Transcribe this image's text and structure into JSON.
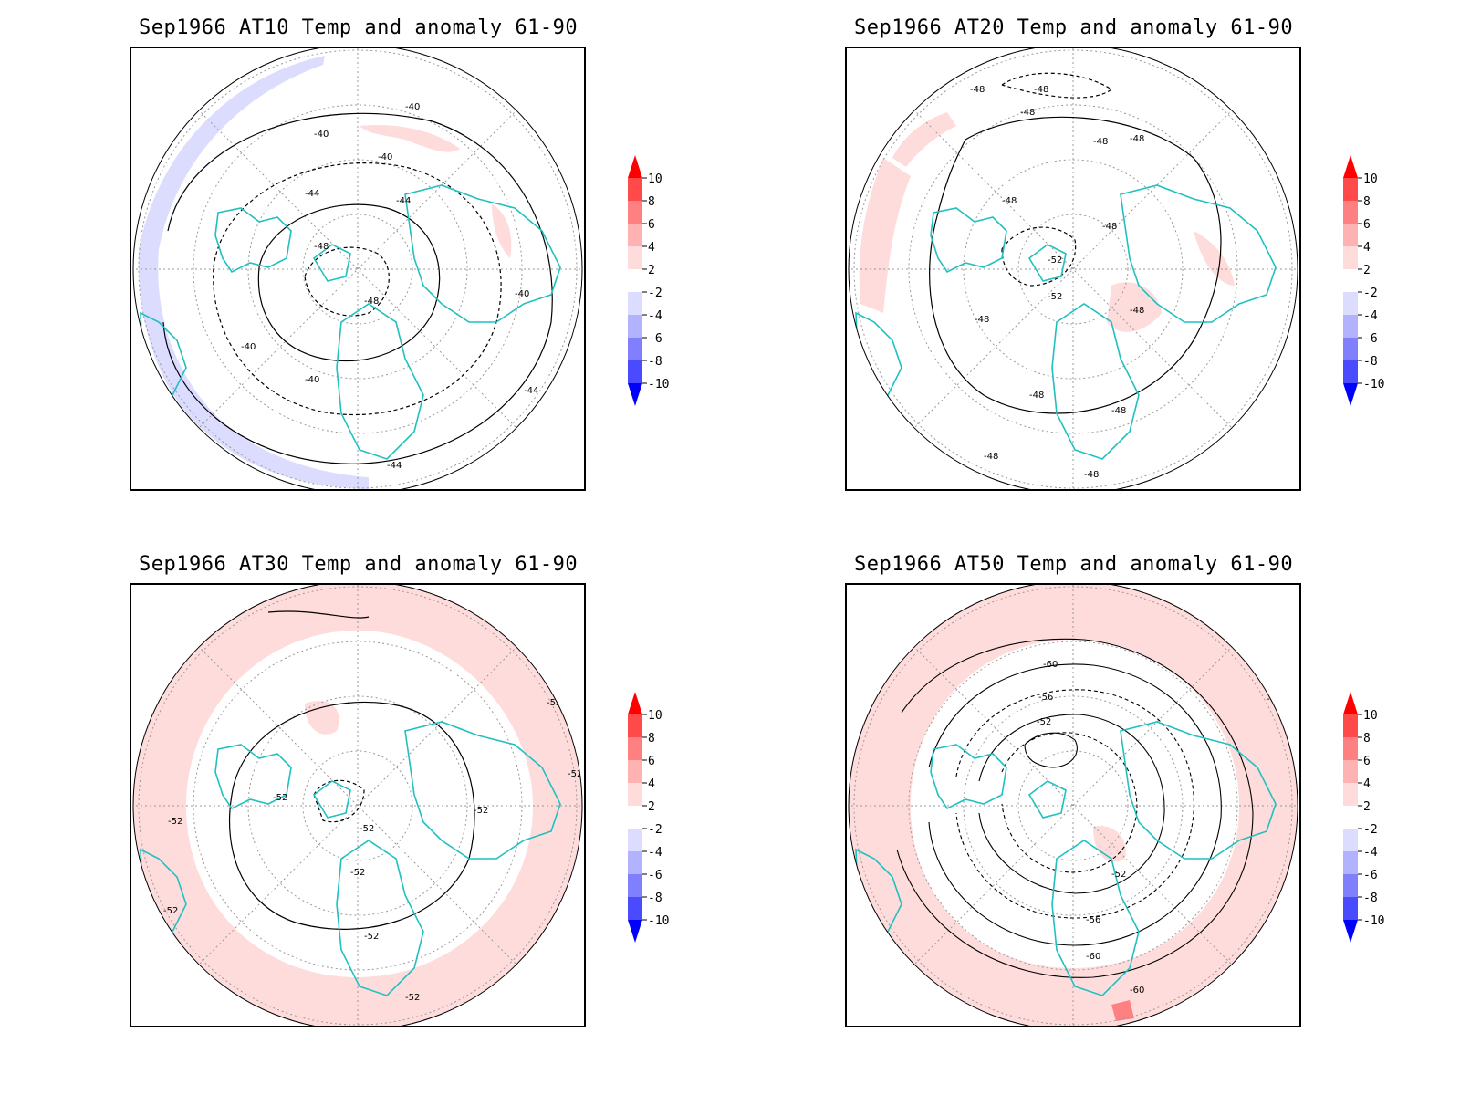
{
  "panels": [
    {
      "id": "at10",
      "title": "Sep1966 AT10 Temp and anomaly 61-90",
      "contour_labels": [
        "-40",
        "-44",
        "-48"
      ],
      "anomaly_fill": "mostly near zero; cool band (-2 to -4) along outer rim west/south, weak warm patches over north Atlantic / Europe"
    },
    {
      "id": "at20",
      "title": "Sep1966 AT20 Temp and anomaly 61-90",
      "contour_labels": [
        "-48",
        "-52"
      ],
      "anomaly_fill": "weak warm (2 to 4) patches along rim and over Europe/Asia"
    },
    {
      "id": "at30",
      "title": "Sep1966 AT30 Temp and anomaly 61-90",
      "contour_labels": [
        "-52"
      ],
      "anomaly_fill": "weak warm (2 to 4) ring around outer edge"
    },
    {
      "id": "at50",
      "title": "Sep1966 AT50 Temp and anomaly 61-90",
      "contour_labels": [
        "-52",
        "-56",
        "-60"
      ],
      "anomaly_fill": "weak warm (2 to 4) outer ring, warm patches Pacific/Asia"
    }
  ],
  "colorbar": {
    "labels": [
      "10",
      "8",
      "6",
      "4",
      "2",
      "-2",
      "-4",
      "-6",
      "-8",
      "-10"
    ],
    "colors": [
      "#ff0000",
      "#ff4a4a",
      "#ff8080",
      "#ffb2b2",
      "#ffdcdc",
      "#ffffff",
      "#dcdcff",
      "#b2b2ff",
      "#8080ff",
      "#4a4aff",
      "#0000ff"
    ]
  },
  "chart_data": [
    {
      "type": "map",
      "title": "Sep1966 AT10 Temp and anomaly 61-90",
      "contour_levels": [
        -48,
        -44,
        -40
      ],
      "colorbar_levels": [
        -10,
        -8,
        -6,
        -4,
        -2,
        2,
        4,
        6,
        8,
        10
      ]
    },
    {
      "type": "map",
      "title": "Sep1966 AT20 Temp and anomaly 61-90",
      "contour_levels": [
        -52,
        -48
      ],
      "colorbar_levels": [
        -10,
        -8,
        -6,
        -4,
        -2,
        2,
        4,
        6,
        8,
        10
      ]
    },
    {
      "type": "map",
      "title": "Sep1966 AT30 Temp and anomaly 61-90",
      "contour_levels": [
        -52
      ],
      "colorbar_levels": [
        -10,
        -8,
        -6,
        -4,
        -2,
        2,
        4,
        6,
        8,
        10
      ]
    },
    {
      "type": "map",
      "title": "Sep1966 AT50 Temp and anomaly 61-90",
      "contour_levels": [
        -60,
        -56,
        -52
      ],
      "colorbar_levels": [
        -10,
        -8,
        -6,
        -4,
        -2,
        2,
        4,
        6,
        8,
        10
      ]
    }
  ]
}
